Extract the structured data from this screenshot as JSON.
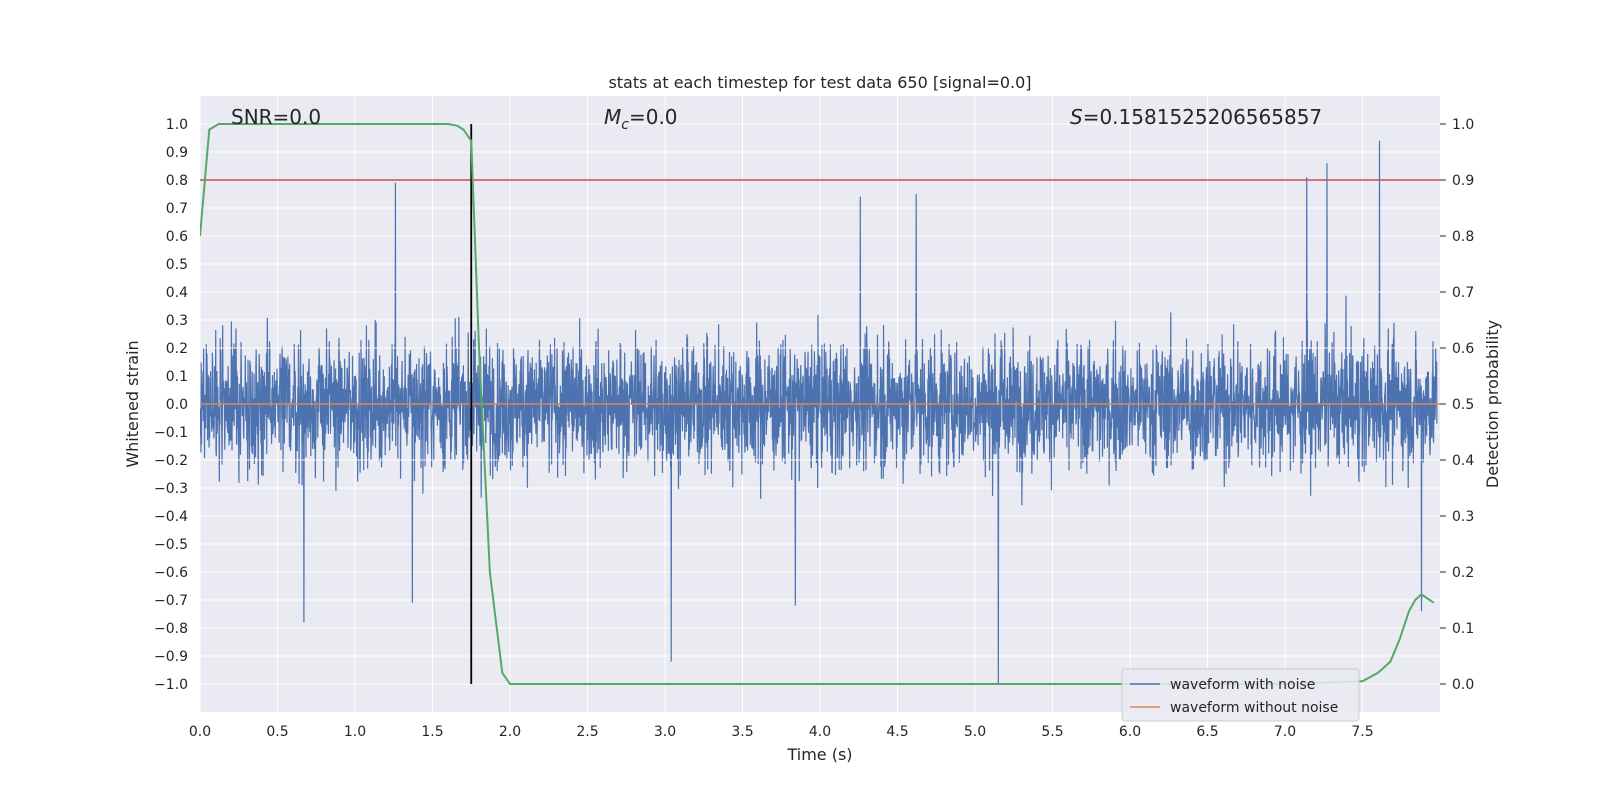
{
  "chart_data": {
    "type": "line",
    "title": "stats at each timestep for test data 650 [signal=0.0]",
    "xlabel": "Time (s)",
    "ylabel": "Whitened strain",
    "y2label": "Detection probability",
    "xlim": [
      0.0,
      8.0
    ],
    "ylim": [
      -1.1,
      1.1
    ],
    "y2lim": [
      -0.05,
      1.05
    ],
    "xticks": [
      0.0,
      0.5,
      1.0,
      1.5,
      2.0,
      2.5,
      3.0,
      3.5,
      4.0,
      4.5,
      5.0,
      5.5,
      6.0,
      6.5,
      7.0,
      7.5
    ],
    "xtick_labels": [
      "0.0",
      "0.5",
      "1.0",
      "1.5",
      "2.0",
      "2.5",
      "3.0",
      "3.5",
      "4.0",
      "4.5",
      "5.0",
      "5.5",
      "6.0",
      "6.5",
      "7.0",
      "7.5"
    ],
    "yticks": [
      1.0,
      0.9,
      0.8,
      0.7,
      0.6,
      0.5,
      0.4,
      0.3,
      0.2,
      0.1,
      0.0,
      -0.1,
      -0.2,
      -0.3,
      -0.4,
      -0.5,
      -0.6,
      -0.7,
      -0.8,
      -0.9,
      -1.0
    ],
    "ytick_labels": [
      "1.0",
      "0.9",
      "0.8",
      "0.7",
      "0.6",
      "0.5",
      "0.4",
      "0.3",
      "0.2",
      "0.1",
      "0.0",
      "−0.1",
      "−0.2",
      "−0.3",
      "−0.4",
      "−0.5",
      "−0.6",
      "−0.7",
      "−0.8",
      "−0.9",
      "−1.0"
    ],
    "y2ticks": [
      1.0,
      0.9,
      0.8,
      0.7,
      0.6,
      0.5,
      0.4,
      0.3,
      0.2,
      0.1,
      0.0
    ],
    "y2tick_labels": [
      "1.0",
      "0.9",
      "0.8",
      "0.7",
      "0.6",
      "0.5",
      "0.4",
      "0.3",
      "0.2",
      "0.1",
      "0.0"
    ],
    "annotations": {
      "snr": "SNR=0.0",
      "mc_symbol": "M",
      "mc_subscript": "c",
      "mc_value": "=0.0",
      "s_symbol": "S",
      "s_value": "=0.1581525206565857"
    },
    "series": [
      {
        "name": "waveform with noise",
        "color": "#4c72b0",
        "axis": "left",
        "description": "whitened strain noise, dense fluctuations mostly within ±0.4, extremes up to 0.94 and down to -1.0",
        "peaks": [
          {
            "x": 1.26,
            "y": 0.79
          },
          {
            "x": 4.26,
            "y": 0.74
          },
          {
            "x": 4.62,
            "y": 0.75
          },
          {
            "x": 7.14,
            "y": 0.81
          },
          {
            "x": 7.27,
            "y": 0.86
          },
          {
            "x": 7.61,
            "y": 0.94
          }
        ],
        "troughs": [
          {
            "x": 0.67,
            "y": -0.78
          },
          {
            "x": 1.37,
            "y": -0.71
          },
          {
            "x": 3.04,
            "y": -0.92
          },
          {
            "x": 3.84,
            "y": -0.72
          },
          {
            "x": 5.15,
            "y": -1.0
          },
          {
            "x": 7.88,
            "y": -0.74
          }
        ]
      },
      {
        "name": "waveform without noise",
        "color": "#dd8452",
        "axis": "left",
        "x": [
          0.0,
          8.0
        ],
        "y": [
          0.0,
          0.0
        ]
      },
      {
        "name": "detection probability",
        "color": "#55a868",
        "axis": "right",
        "x": [
          0.0,
          0.06,
          0.12,
          0.25,
          0.5,
          1.0,
          1.5,
          1.6,
          1.66,
          1.7,
          1.75,
          1.8,
          1.87,
          1.95,
          2.0,
          3.0,
          5.0,
          6.0,
          7.0,
          7.5,
          7.6,
          7.68,
          7.74,
          7.8,
          7.84,
          7.88,
          7.96
        ],
        "y": [
          0.8,
          0.99,
          1.0,
          1.0,
          1.0,
          1.0,
          1.0,
          1.0,
          0.997,
          0.99,
          0.97,
          0.6,
          0.2,
          0.02,
          0.0,
          0.0,
          0.0,
          0.0,
          0.0,
          0.005,
          0.02,
          0.04,
          0.08,
          0.13,
          0.15,
          0.16,
          0.145
        ]
      }
    ],
    "threshold_line": {
      "axis": "right",
      "value": 0.9,
      "color": "#c44e52"
    },
    "event_marker": {
      "x": 1.75,
      "axis": "right",
      "from": 0.0,
      "to": 1.0,
      "color": "#000000"
    },
    "legend": {
      "position": "lower-right",
      "entries": [
        {
          "label": "waveform with noise",
          "color": "#4c72b0"
        },
        {
          "label": "waveform without noise",
          "color": "#dd8452"
        }
      ]
    },
    "grid": true,
    "colors": {
      "background": "#eaeaf2",
      "grid": "#ffffff"
    }
  }
}
